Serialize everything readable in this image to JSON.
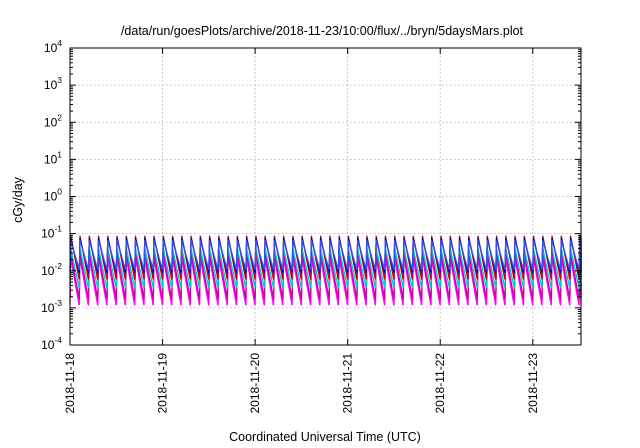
{
  "chart_data": {
    "type": "line",
    "title": "/data/run/goesPlots/archive/2018-11-23/10:00/flux/../bryn/5daysMars.plot",
    "xlabel": "Coordinated Universal Time (UTC)",
    "ylabel": "cGy/day",
    "yscale": "log",
    "ylim": [
      0.0001,
      10000
    ],
    "xlim": [
      "2018-11-18T00:00",
      "2018-11-23T12:30"
    ],
    "grid": true,
    "legend": "none",
    "x_tick_labels": [
      "2018-11-18",
      "2018-11-19",
      "2018-11-20",
      "2018-11-21",
      "2018-11-22",
      "2018-11-23"
    ],
    "y_tick_labels": [
      {
        "base": "10",
        "exp": "-4"
      },
      {
        "base": "10",
        "exp": "-3"
      },
      {
        "base": "10",
        "exp": "-2"
      },
      {
        "base": "10",
        "exp": "-1"
      },
      {
        "base": "10",
        "exp": "0"
      },
      {
        "base": "10",
        "exp": "1"
      },
      {
        "base": "10",
        "exp": "2"
      },
      {
        "base": "10",
        "exp": "3"
      },
      {
        "base": "10",
        "exp": "4"
      }
    ],
    "sawtooth_period_hours": 2.4,
    "series": [
      {
        "color": "#ff00ff",
        "peak": 0.022,
        "trough": 0.0012
      },
      {
        "color": "#cc0099",
        "peak": 0.03,
        "trough": 0.0018
      },
      {
        "color": "#00cccc",
        "peak": 0.04,
        "trough": 0.0035
      },
      {
        "color": "#cc0000",
        "peak": 0.085,
        "trough": 0.006
      },
      {
        "color": "#0000cc",
        "peak": 0.075,
        "trough": 0.009
      },
      {
        "color": "#3355ee",
        "peak": 0.065,
        "trough": 0.011
      }
    ]
  }
}
